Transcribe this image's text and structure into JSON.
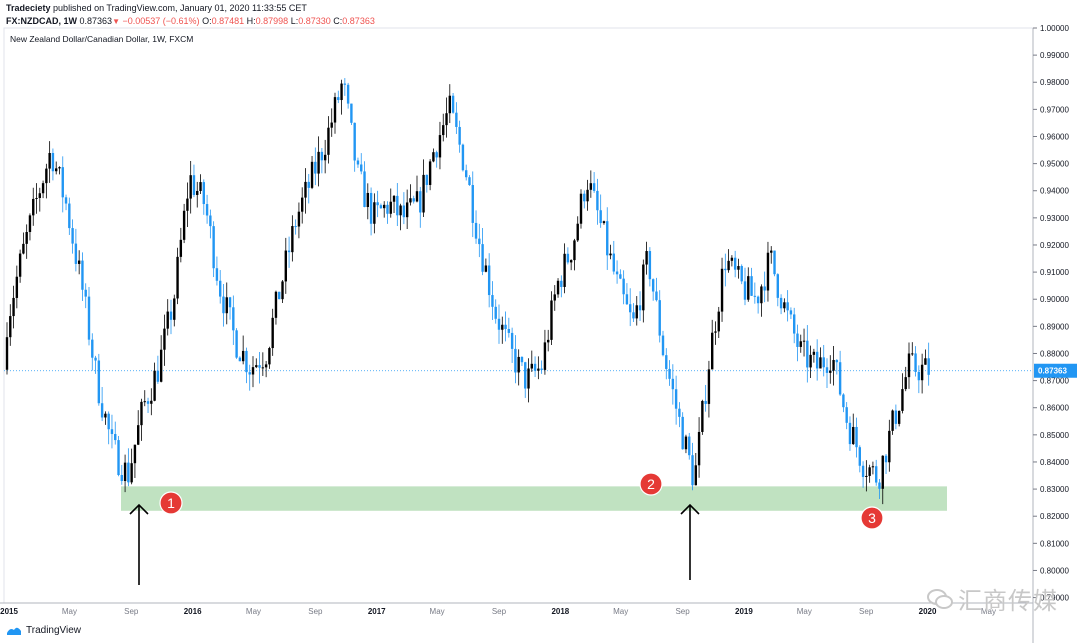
{
  "header": {
    "publisher": "Tradeciety",
    "published_text": "published on TradingView.com, January 01, 2020 11:33:55 CET",
    "symbol": "FX:NZDCAD, 1W",
    "last": "0.87363",
    "change": "−0.00537 (−0.61%)",
    "o_label": "O:",
    "o_val": "0.87481",
    "h_label": "H:",
    "h_val": "0.87998",
    "l_label": "L:",
    "l_val": "0.87330",
    "c_label": "C:",
    "c_val": "0.87363"
  },
  "chart_title": "New Zealand Dollar/Canadian Dollar, 1W, FXCM",
  "price_tag": "0.87363",
  "footer": {
    "brand": "TradingView"
  },
  "watermark": "汇商传媒",
  "markers": [
    {
      "label": "1"
    },
    {
      "label": "2"
    },
    {
      "label": "3"
    }
  ],
  "colors": {
    "up": "#000000",
    "down": "#2196f3",
    "support_zone": "#a5d6a7",
    "marker": "#e53935",
    "price_line": "#2196f3"
  },
  "chart_data": {
    "type": "candlestick",
    "title": "New Zealand Dollar/Canadian Dollar, 1W, FXCM",
    "yticks": [
      "1.00000",
      "0.99000",
      "0.98000",
      "0.97000",
      "0.96000",
      "0.95000",
      "0.94000",
      "0.93000",
      "0.92000",
      "0.91000",
      "0.90000",
      "0.89000",
      "0.88000",
      "0.87000",
      "0.86000",
      "0.85000",
      "0.84000",
      "0.83000",
      "0.82000",
      "0.81000",
      "0.80000",
      "0.79000"
    ],
    "ylim": [
      0.788,
      1.0
    ],
    "xticks": [
      "2015",
      "May",
      "Sep",
      "2016",
      "May",
      "Sep",
      "2017",
      "May",
      "Sep",
      "2018",
      "May",
      "Sep",
      "2019",
      "May",
      "Sep",
      "2020",
      "May"
    ],
    "support_zone": [
      0.822,
      0.831
    ],
    "last_price": 0.87363,
    "price_path": [
      {
        "x": "2015-01",
        "y": 0.89
      },
      {
        "x": "2015-02",
        "y": 0.915
      },
      {
        "x": "2015-03",
        "y": 0.935
      },
      {
        "x": "2015-04",
        "y": 0.955
      },
      {
        "x": "2015-05",
        "y": 0.935
      },
      {
        "x": "2015-06",
        "y": 0.905
      },
      {
        "x": "2015-07",
        "y": 0.87
      },
      {
        "x": "2015-08",
        "y": 0.845
      },
      {
        "x": "2015-09",
        "y": 0.835
      },
      {
        "x": "2015-10",
        "y": 0.86
      },
      {
        "x": "2015-11",
        "y": 0.875
      },
      {
        "x": "2015-12",
        "y": 0.9
      },
      {
        "x": "2016-01",
        "y": 0.945
      },
      {
        "x": "2016-02",
        "y": 0.935
      },
      {
        "x": "2016-03",
        "y": 0.905
      },
      {
        "x": "2016-04",
        "y": 0.885
      },
      {
        "x": "2016-05",
        "y": 0.875
      },
      {
        "x": "2016-06",
        "y": 0.88
      },
      {
        "x": "2016-07",
        "y": 0.905
      },
      {
        "x": "2016-08",
        "y": 0.93
      },
      {
        "x": "2016-09",
        "y": 0.945
      },
      {
        "x": "2016-10",
        "y": 0.96
      },
      {
        "x": "2016-11",
        "y": 0.98
      },
      {
        "x": "2016-12",
        "y": 0.945
      },
      {
        "x": "2017-01",
        "y": 0.93
      },
      {
        "x": "2017-02",
        "y": 0.935
      },
      {
        "x": "2017-03",
        "y": 0.93
      },
      {
        "x": "2017-04",
        "y": 0.935
      },
      {
        "x": "2017-05",
        "y": 0.955
      },
      {
        "x": "2017-06",
        "y": 0.97
      },
      {
        "x": "2017-07",
        "y": 0.95
      },
      {
        "x": "2017-08",
        "y": 0.92
      },
      {
        "x": "2017-09",
        "y": 0.895
      },
      {
        "x": "2017-10",
        "y": 0.88
      },
      {
        "x": "2017-11",
        "y": 0.87
      },
      {
        "x": "2017-12",
        "y": 0.875
      },
      {
        "x": "2018-01",
        "y": 0.905
      },
      {
        "x": "2018-02",
        "y": 0.92
      },
      {
        "x": "2018-03",
        "y": 0.945
      },
      {
        "x": "2018-04",
        "y": 0.925
      },
      {
        "x": "2018-05",
        "y": 0.905
      },
      {
        "x": "2018-06",
        "y": 0.89
      },
      {
        "x": "2018-07",
        "y": 0.915
      },
      {
        "x": "2018-08",
        "y": 0.88
      },
      {
        "x": "2018-09",
        "y": 0.855
      },
      {
        "x": "2018-10",
        "y": 0.833
      },
      {
        "x": "2018-11",
        "y": 0.88
      },
      {
        "x": "2018-12",
        "y": 0.915
      },
      {
        "x": "2019-01",
        "y": 0.905
      },
      {
        "x": "2019-02",
        "y": 0.9
      },
      {
        "x": "2019-03",
        "y": 0.915
      },
      {
        "x": "2019-04",
        "y": 0.895
      },
      {
        "x": "2019-05",
        "y": 0.88
      },
      {
        "x": "2019-06",
        "y": 0.875
      },
      {
        "x": "2019-07",
        "y": 0.88
      },
      {
        "x": "2019-08",
        "y": 0.855
      },
      {
        "x": "2019-09",
        "y": 0.84
      },
      {
        "x": "2019-10",
        "y": 0.834
      },
      {
        "x": "2019-11",
        "y": 0.855
      },
      {
        "x": "2019-12",
        "y": 0.875
      },
      {
        "x": "2020-01",
        "y": 0.874
      }
    ]
  }
}
